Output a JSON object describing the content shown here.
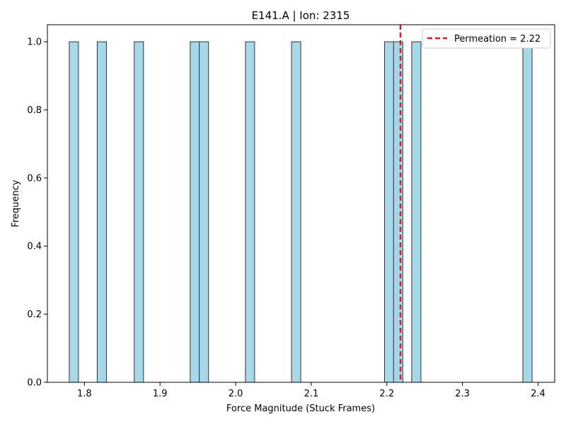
{
  "chart_data": {
    "type": "bar",
    "title": "E141.A | Ion: 2315",
    "xlabel": "Force Magnitude (Stuck Frames)",
    "ylabel": "Frequency",
    "xlim": [
      1.751,
      2.422
    ],
    "ylim": [
      0,
      1.05
    ],
    "bin_width": 0.0122,
    "bins": [
      {
        "x": 1.786,
        "count": 1
      },
      {
        "x": 1.823,
        "count": 1
      },
      {
        "x": 1.872,
        "count": 1
      },
      {
        "x": 1.946,
        "count": 1
      },
      {
        "x": 1.958,
        "count": 1
      },
      {
        "x": 2.019,
        "count": 1
      },
      {
        "x": 2.08,
        "count": 1
      },
      {
        "x": 2.203,
        "count": 1
      },
      {
        "x": 2.215,
        "count": 1
      },
      {
        "x": 2.239,
        "count": 1
      },
      {
        "x": 2.386,
        "count": 1
      }
    ],
    "x_ticks": [
      {
        "value": 1.8,
        "label": "1.8"
      },
      {
        "value": 1.9,
        "label": "1.9"
      },
      {
        "value": 2.0,
        "label": "2.0"
      },
      {
        "value": 2.1,
        "label": "2.1"
      },
      {
        "value": 2.2,
        "label": "2.2"
      },
      {
        "value": 2.3,
        "label": "2.3"
      },
      {
        "value": 2.4,
        "label": "2.4"
      }
    ],
    "y_ticks": [
      {
        "value": 0.0,
        "label": "0.0"
      },
      {
        "value": 0.2,
        "label": "0.2"
      },
      {
        "value": 0.4,
        "label": "0.4"
      },
      {
        "value": 0.6,
        "label": "0.6"
      },
      {
        "value": 0.8,
        "label": "0.8"
      },
      {
        "value": 1.0,
        "label": "1.0"
      }
    ],
    "reference_line": {
      "x": 2.218,
      "label": "Permeation = 2.22",
      "color": "#e41a1c",
      "style": "dashed"
    },
    "legend": {
      "position": "top-right",
      "entries": [
        "Permeation = 2.22"
      ]
    },
    "bar_color": "#a6d8ea",
    "bar_edge_color": "#333333",
    "grid": false
  }
}
